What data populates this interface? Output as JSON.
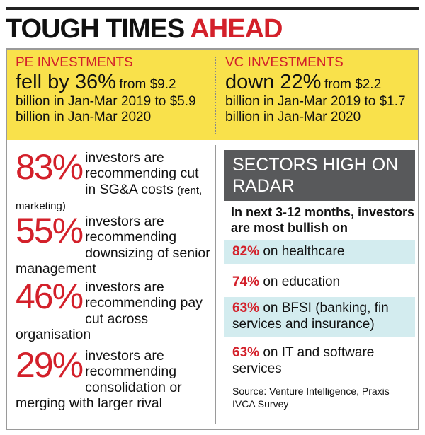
{
  "title": {
    "main": "TOUGH TIMES",
    "accent": "AHEAD"
  },
  "investments": [
    {
      "label": "PE INVESTMENTS",
      "headline": "fell by 36%",
      "detail": "from $9.2 billion in Jan-Mar 2019 to $5.9 billion in Jan-Mar 2020"
    },
    {
      "label": "VC INVESTMENTS",
      "headline": "down 22%",
      "detail": "from $2.2 billion in Jan-Mar 2019 to $1.7 billion in Jan-Mar 2020"
    }
  ],
  "stats": [
    {
      "percent": "83%",
      "text": "investors are recommending cut in SG&A costs",
      "note": "(rent, marketing)"
    },
    {
      "percent": "55%",
      "text": "investors are recommending downsizing of senior management"
    },
    {
      "percent": "46%",
      "text": "investors are recommending pay cut across organisation"
    },
    {
      "percent": "29%",
      "text": "investors are recommending consolidation or merging with larger rival"
    }
  ],
  "sectors": {
    "header": "SECTORS HIGH ON RADAR",
    "subtitle": "In next 3-12 months, investors are most bullish on",
    "items": [
      {
        "percent": "82%",
        "text": "on healthcare"
      },
      {
        "percent": "74%",
        "text": "on education"
      },
      {
        "percent": "63%",
        "text": "on BFSI (banking, fin services and insurance)"
      },
      {
        "percent": "63%",
        "text": "on IT and software services"
      }
    ],
    "source": "Source: Venture Intelligence, Praxis IVCA Survey"
  }
}
